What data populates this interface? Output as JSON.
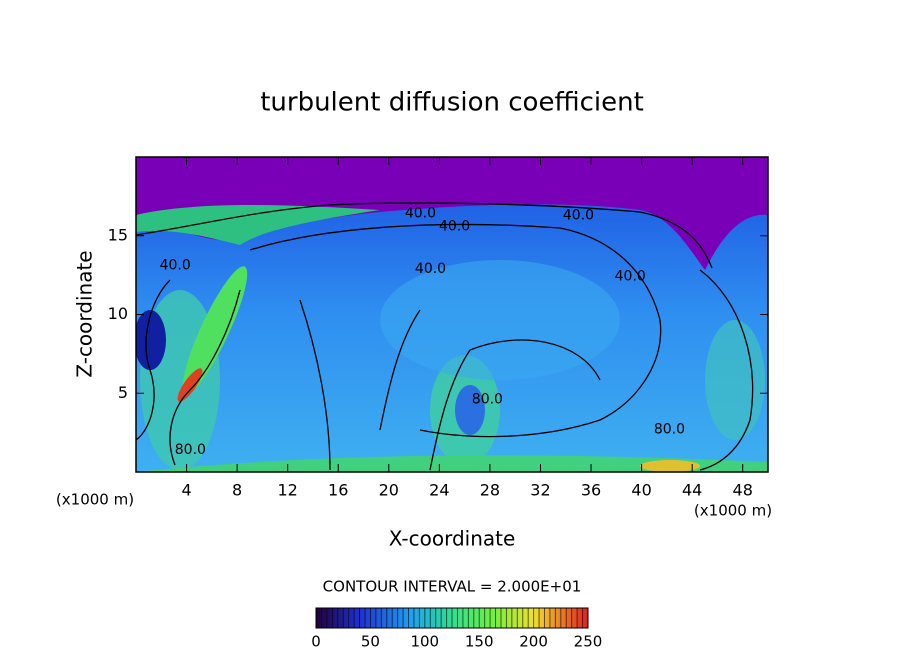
{
  "chart_data": {
    "type": "contour",
    "title": "turbulent diffusion coefficient",
    "xlabel": "X-coordinate",
    "ylabel": "Z-coordinate",
    "xunit": "(x1000 m)",
    "yunit": "(x1000 m)",
    "xlim": [
      0,
      50
    ],
    "ylim": [
      0,
      20
    ],
    "xticks": [
      4,
      8,
      12,
      16,
      20,
      24,
      28,
      32,
      36,
      40,
      44,
      48
    ],
    "yticks": [
      5,
      10,
      15
    ],
    "contour_labels": [
      {
        "x": 22.5,
        "y": 16.4,
        "value": 40,
        "label": "40.0"
      },
      {
        "x": 25.2,
        "y": 15.6,
        "value": 40,
        "label": "40.0"
      },
      {
        "x": 35.0,
        "y": 16.3,
        "value": 40,
        "label": "40.0"
      },
      {
        "x": 23.3,
        "y": 12.9,
        "value": 40,
        "label": "40.0"
      },
      {
        "x": 39.1,
        "y": 12.4,
        "value": 40,
        "label": "40.0"
      },
      {
        "x": 3.1,
        "y": 13.1,
        "value": 40,
        "label": "40.0"
      },
      {
        "x": 27.8,
        "y": 4.6,
        "value": 80,
        "label": "80.0"
      },
      {
        "x": 42.2,
        "y": 2.7,
        "value": 80,
        "label": "80.0"
      },
      {
        "x": 4.3,
        "y": 1.4,
        "value": 80,
        "label": "80.0"
      }
    ],
    "contour_interval_label": "CONTOUR INTERVAL = 2.000E+01",
    "clim": [
      0,
      250
    ],
    "cticks": [
      0,
      50,
      100,
      150,
      200,
      250
    ]
  }
}
